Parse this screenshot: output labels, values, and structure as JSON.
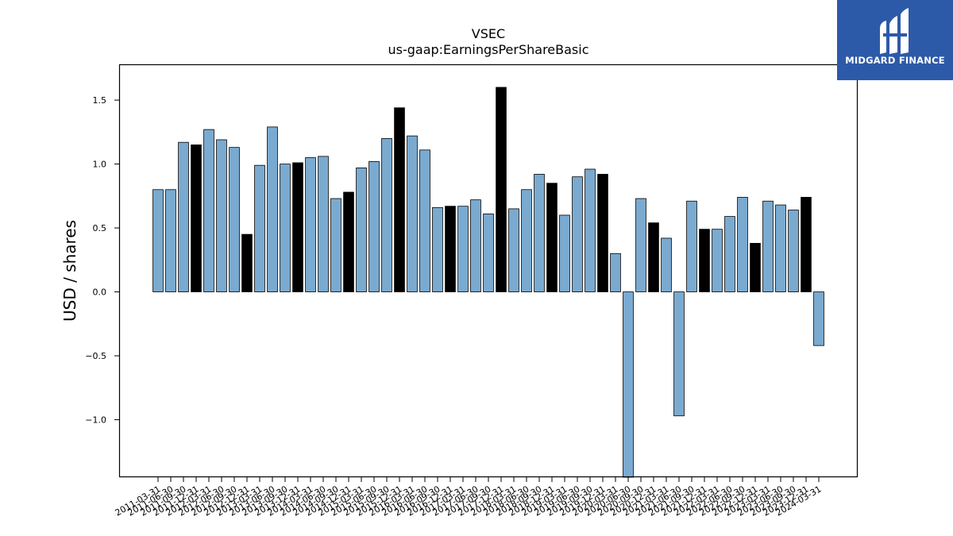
{
  "chart_data": {
    "type": "bar",
    "title": "VSEC",
    "subtitle": "us-gaap:EarningsPerShareBasic",
    "xlabel": "",
    "ylabel": "USD / shares",
    "ylim": [
      -1.45,
      1.78
    ],
    "yticks": [
      -1.0,
      -0.5,
      0.0,
      0.5,
      1.0,
      1.5
    ],
    "ytick_labels": [
      "−1.0",
      "−0.5",
      "0.0",
      "0.5",
      "1.0",
      "1.5"
    ],
    "grid": false,
    "colors": {
      "quarter": "#7aaad0",
      "annual": "#000000",
      "edge": "#000000"
    },
    "categories": [
      "2011-03-31",
      "2011-06-30",
      "2011-09-30",
      "2011-12-31",
      "2012-03-31",
      "2012-06-30",
      "2012-09-30",
      "2012-12-31",
      "2013-03-31",
      "2013-06-30",
      "2013-09-30",
      "2013-12-31",
      "2014-03-31",
      "2014-06-30",
      "2014-09-30",
      "2014-12-31",
      "2015-03-31",
      "2015-06-30",
      "2015-09-30",
      "2015-12-31",
      "2016-03-31",
      "2016-06-30",
      "2016-09-30",
      "2016-12-31",
      "2017-03-31",
      "2017-06-30",
      "2017-09-30",
      "2017-12-31",
      "2018-03-31",
      "2018-06-30",
      "2018-09-30",
      "2018-12-31",
      "2019-03-31",
      "2019-06-30",
      "2019-09-30",
      "2019-12-31",
      "2020-03-31",
      "2020-06-30",
      "2020-09-30",
      "2020-12-31",
      "2021-03-31",
      "2021-06-30",
      "2021-09-30",
      "2021-12-31",
      "2022-03-31",
      "2022-06-30",
      "2022-09-30",
      "2022-12-31",
      "2023-03-31",
      "2023-06-30",
      "2023-09-30",
      "2023-12-31",
      "2024-03-31"
    ],
    "values": [
      0.8,
      0.8,
      1.17,
      1.15,
      1.27,
      1.19,
      1.13,
      0.45,
      0.99,
      1.29,
      1.0,
      1.01,
      1.05,
      1.06,
      0.73,
      0.78,
      0.97,
      1.02,
      1.2,
      1.44,
      1.22,
      1.11,
      0.66,
      0.67,
      0.67,
      0.72,
      0.61,
      1.6,
      0.65,
      0.8,
      0.92,
      0.85,
      0.6,
      0.9,
      0.96,
      0.92,
      0.3,
      -1.48,
      0.73,
      0.54,
      0.42,
      -0.97,
      0.71,
      0.49,
      0.49,
      0.59,
      0.74,
      0.38,
      0.71,
      0.68,
      0.64,
      0.74,
      -0.42
    ],
    "annual": [
      false,
      false,
      false,
      true,
      false,
      false,
      false,
      true,
      false,
      false,
      false,
      true,
      false,
      false,
      false,
      true,
      false,
      false,
      false,
      true,
      false,
      false,
      false,
      true,
      false,
      false,
      false,
      true,
      false,
      false,
      false,
      true,
      false,
      false,
      false,
      true,
      false,
      false,
      false,
      true,
      false,
      false,
      false,
      true,
      false,
      false,
      false,
      true,
      false,
      false,
      false,
      true,
      false
    ]
  },
  "logo": {
    "text": "MIDGARD FINANCE",
    "icon": "midgard-m-logo-icon"
  }
}
